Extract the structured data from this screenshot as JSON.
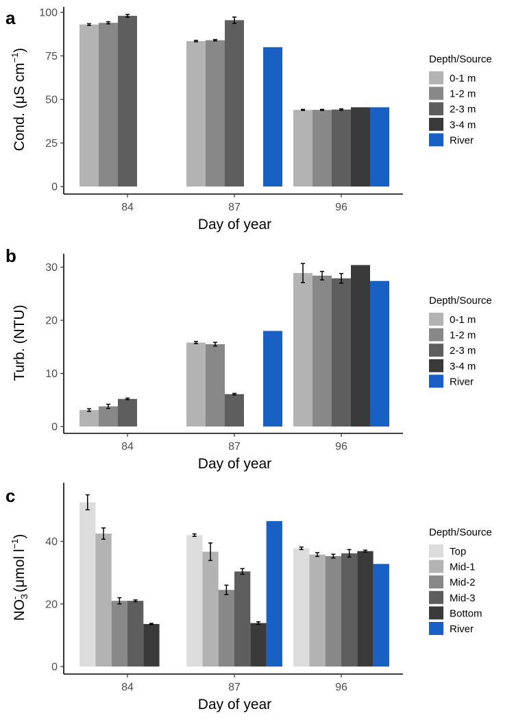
{
  "colors": {
    "0-1 m": "#b3b3b3",
    "1-2 m": "#888888",
    "2-3 m": "#5e5e5e",
    "3-4 m": "#3a3a3a",
    "Top": "#dddddd",
    "Mid-1": "#b3b3b3",
    "Mid-2": "#888888",
    "Mid-3": "#5e5e5e",
    "Bottom": "#3a3a3a",
    "River": "#1860c4"
  },
  "chart_data": [
    {
      "panel": "a",
      "type": "bar",
      "categories": [
        "84",
        "87",
        "96"
      ],
      "xlabel": "Day of year",
      "ylabel": "Cond. (μS cm⁻¹)",
      "ylabel_parts": {
        "main": "Cond. (μS cm",
        "sup": "−1",
        "end": ")"
      },
      "ylim": [
        0,
        100
      ],
      "yticks": [
        0,
        25,
        50,
        75,
        100
      ],
      "grid": false,
      "legend_title": "Depth/Source",
      "legend_position": "right",
      "series": [
        {
          "name": "0-1 m",
          "values": [
            93,
            83.5,
            44
          ],
          "errors": [
            0.5,
            0.4,
            0.3
          ]
        },
        {
          "name": "1-2 m",
          "values": [
            94,
            84,
            44
          ],
          "errors": [
            0.6,
            0.4,
            0.3
          ]
        },
        {
          "name": "2-3 m",
          "values": [
            98,
            95.5,
            44.2
          ],
          "errors": [
            0.8,
            1.8,
            0.4
          ]
        },
        {
          "name": "3-4 m",
          "values": [
            null,
            null,
            45.5
          ],
          "errors": [
            null,
            null,
            null
          ]
        },
        {
          "name": "River",
          "values": [
            null,
            80,
            45.5
          ],
          "errors": [
            null,
            null,
            null
          ]
        }
      ]
    },
    {
      "panel": "b",
      "type": "bar",
      "categories": [
        "84",
        "87",
        "96"
      ],
      "xlabel": "Day of year",
      "ylabel": "Turb. (NTU)",
      "ylabel_parts": {
        "main": "Turb. (NTU)",
        "sup": "",
        "end": ""
      },
      "ylim": [
        0,
        31.5
      ],
      "yticks": [
        0,
        10,
        20,
        30
      ],
      "grid": false,
      "legend_title": "Depth/Source",
      "legend_position": "right",
      "series": [
        {
          "name": "0-1 m",
          "values": [
            3.1,
            15.8,
            28.9
          ],
          "errors": [
            0.25,
            0.2,
            1.8
          ]
        },
        {
          "name": "1-2 m",
          "values": [
            3.8,
            15.5,
            28.4
          ],
          "errors": [
            0.4,
            0.35,
            0.8
          ]
        },
        {
          "name": "2-3 m",
          "values": [
            5.2,
            6.1,
            27.9
          ],
          "errors": [
            0.15,
            0.15,
            0.9
          ]
        },
        {
          "name": "3-4 m",
          "values": [
            null,
            null,
            30.4
          ],
          "errors": [
            null,
            null,
            null
          ]
        },
        {
          "name": "River",
          "values": [
            null,
            18,
            27.4
          ],
          "errors": [
            null,
            null,
            null
          ]
        }
      ]
    },
    {
      "panel": "c",
      "type": "bar",
      "categories": [
        "84",
        "87",
        "96"
      ],
      "xlabel": "Day of year",
      "ylabel": "NO₃⁻ (μmol l⁻¹)",
      "ylabel_parts": {
        "main": "NO",
        "sub": "3",
        "sup": "-",
        "rest": " (μmol l",
        "sup2": "−1",
        "end": ")"
      },
      "ylim": [
        0,
        57
      ],
      "yticks": [
        0,
        20,
        40
      ],
      "grid": false,
      "legend_title": "Depth/Source",
      "legend_position": "right",
      "series": [
        {
          "name": "Top",
          "values": [
            52.5,
            42,
            37.8
          ],
          "errors": [
            2.4,
            0.4,
            0.4
          ]
        },
        {
          "name": "Mid-1",
          "values": [
            42.5,
            36.7,
            35.8
          ],
          "errors": [
            1.8,
            2.8,
            0.6
          ]
        },
        {
          "name": "Mid-2",
          "values": [
            21,
            24.5,
            35.3
          ],
          "errors": [
            1,
            1.5,
            0.6
          ]
        },
        {
          "name": "Mid-3",
          "values": [
            21,
            30.4,
            36.2
          ],
          "errors": [
            0.3,
            0.9,
            1.2
          ]
        },
        {
          "name": "Bottom",
          "values": [
            13.6,
            13.9,
            36.9
          ],
          "errors": [
            0.2,
            0.4,
            0.3
          ]
        },
        {
          "name": "River",
          "values": [
            null,
            46.5,
            32.8
          ],
          "errors": [
            null,
            null,
            null
          ]
        }
      ]
    }
  ]
}
